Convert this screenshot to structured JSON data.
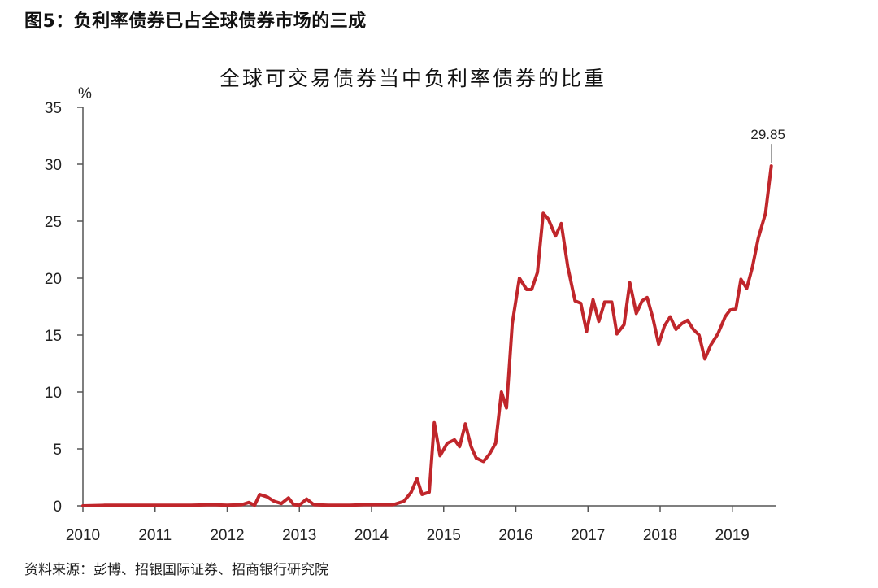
{
  "figure_caption": "图5：负利率债券已占全球债券市场的三成",
  "source_note": "资料来源：彭博、招银国际证券、招商银行研究院",
  "chart_data": {
    "type": "line",
    "title": "全球可交易债券当中负利率债券的比重",
    "xlabel": "",
    "ylabel": "%",
    "xlim": [
      2010.0,
      2019.6
    ],
    "ylim": [
      0,
      35
    ],
    "yticks": [
      0,
      5,
      10,
      15,
      20,
      25,
      30,
      35
    ],
    "xticks": [
      "2010",
      "2011",
      "2012",
      "2013",
      "2014",
      "2015",
      "2016",
      "2017",
      "2018",
      "2019"
    ],
    "grid": false,
    "legend": "none",
    "line_color": "#c0262b",
    "annotations": [
      {
        "text": "29.85",
        "x": 2019.54,
        "y": 29.85
      }
    ],
    "series": [
      {
        "points": [
          [
            2010.0,
            0
          ],
          [
            2010.3,
            0.05
          ],
          [
            2011.0,
            0.05
          ],
          [
            2011.5,
            0.05
          ],
          [
            2011.8,
            0.1
          ],
          [
            2012.0,
            0.05
          ],
          [
            2012.2,
            0.1
          ],
          [
            2012.3,
            0.3
          ],
          [
            2012.38,
            0.05
          ],
          [
            2012.45,
            1.0
          ],
          [
            2012.55,
            0.8
          ],
          [
            2012.65,
            0.4
          ],
          [
            2012.75,
            0.2
          ],
          [
            2012.85,
            0.7
          ],
          [
            2012.92,
            0.1
          ],
          [
            2013.0,
            0.05
          ],
          [
            2013.1,
            0.6
          ],
          [
            2013.2,
            0.1
          ],
          [
            2013.4,
            0.05
          ],
          [
            2013.7,
            0.05
          ],
          [
            2013.9,
            0.1
          ],
          [
            2014.1,
            0.1
          ],
          [
            2014.3,
            0.1
          ],
          [
            2014.45,
            0.4
          ],
          [
            2014.55,
            1.2
          ],
          [
            2014.63,
            2.4
          ],
          [
            2014.7,
            1.0
          ],
          [
            2014.8,
            1.2
          ],
          [
            2014.87,
            7.3
          ],
          [
            2014.95,
            4.4
          ],
          [
            2015.05,
            5.5
          ],
          [
            2015.15,
            5.8
          ],
          [
            2015.22,
            5.2
          ],
          [
            2015.3,
            7.2
          ],
          [
            2015.38,
            5.2
          ],
          [
            2015.45,
            4.2
          ],
          [
            2015.55,
            3.9
          ],
          [
            2015.63,
            4.5
          ],
          [
            2015.72,
            5.5
          ],
          [
            2015.8,
            10.0
          ],
          [
            2015.87,
            8.6
          ],
          [
            2015.95,
            16.0
          ],
          [
            2016.05,
            20.0
          ],
          [
            2016.15,
            19.0
          ],
          [
            2016.22,
            19.0
          ],
          [
            2016.3,
            20.5
          ],
          [
            2016.38,
            25.7
          ],
          [
            2016.45,
            25.2
          ],
          [
            2016.55,
            23.7
          ],
          [
            2016.63,
            24.8
          ],
          [
            2016.72,
            21.0
          ],
          [
            2016.82,
            18.0
          ],
          [
            2016.9,
            17.8
          ],
          [
            2016.98,
            15.3
          ],
          [
            2017.07,
            18.1
          ],
          [
            2017.15,
            16.2
          ],
          [
            2017.23,
            17.9
          ],
          [
            2017.33,
            17.9
          ],
          [
            2017.4,
            15.1
          ],
          [
            2017.5,
            15.9
          ],
          [
            2017.58,
            19.6
          ],
          [
            2017.67,
            16.9
          ],
          [
            2017.75,
            18.0
          ],
          [
            2017.82,
            18.3
          ],
          [
            2017.9,
            16.5
          ],
          [
            2017.98,
            14.2
          ],
          [
            2018.06,
            15.8
          ],
          [
            2018.14,
            16.6
          ],
          [
            2018.22,
            15.5
          ],
          [
            2018.3,
            16.0
          ],
          [
            2018.38,
            16.3
          ],
          [
            2018.46,
            15.5
          ],
          [
            2018.54,
            15.0
          ],
          [
            2018.62,
            12.9
          ],
          [
            2018.7,
            14.1
          ],
          [
            2018.8,
            15.1
          ],
          [
            2018.9,
            16.6
          ],
          [
            2018.97,
            17.2
          ],
          [
            2019.05,
            17.3
          ],
          [
            2019.12,
            19.9
          ],
          [
            2019.2,
            19.1
          ],
          [
            2019.28,
            21.0
          ],
          [
            2019.36,
            23.5
          ],
          [
            2019.46,
            25.7
          ],
          [
            2019.54,
            29.85
          ]
        ]
      }
    ]
  }
}
